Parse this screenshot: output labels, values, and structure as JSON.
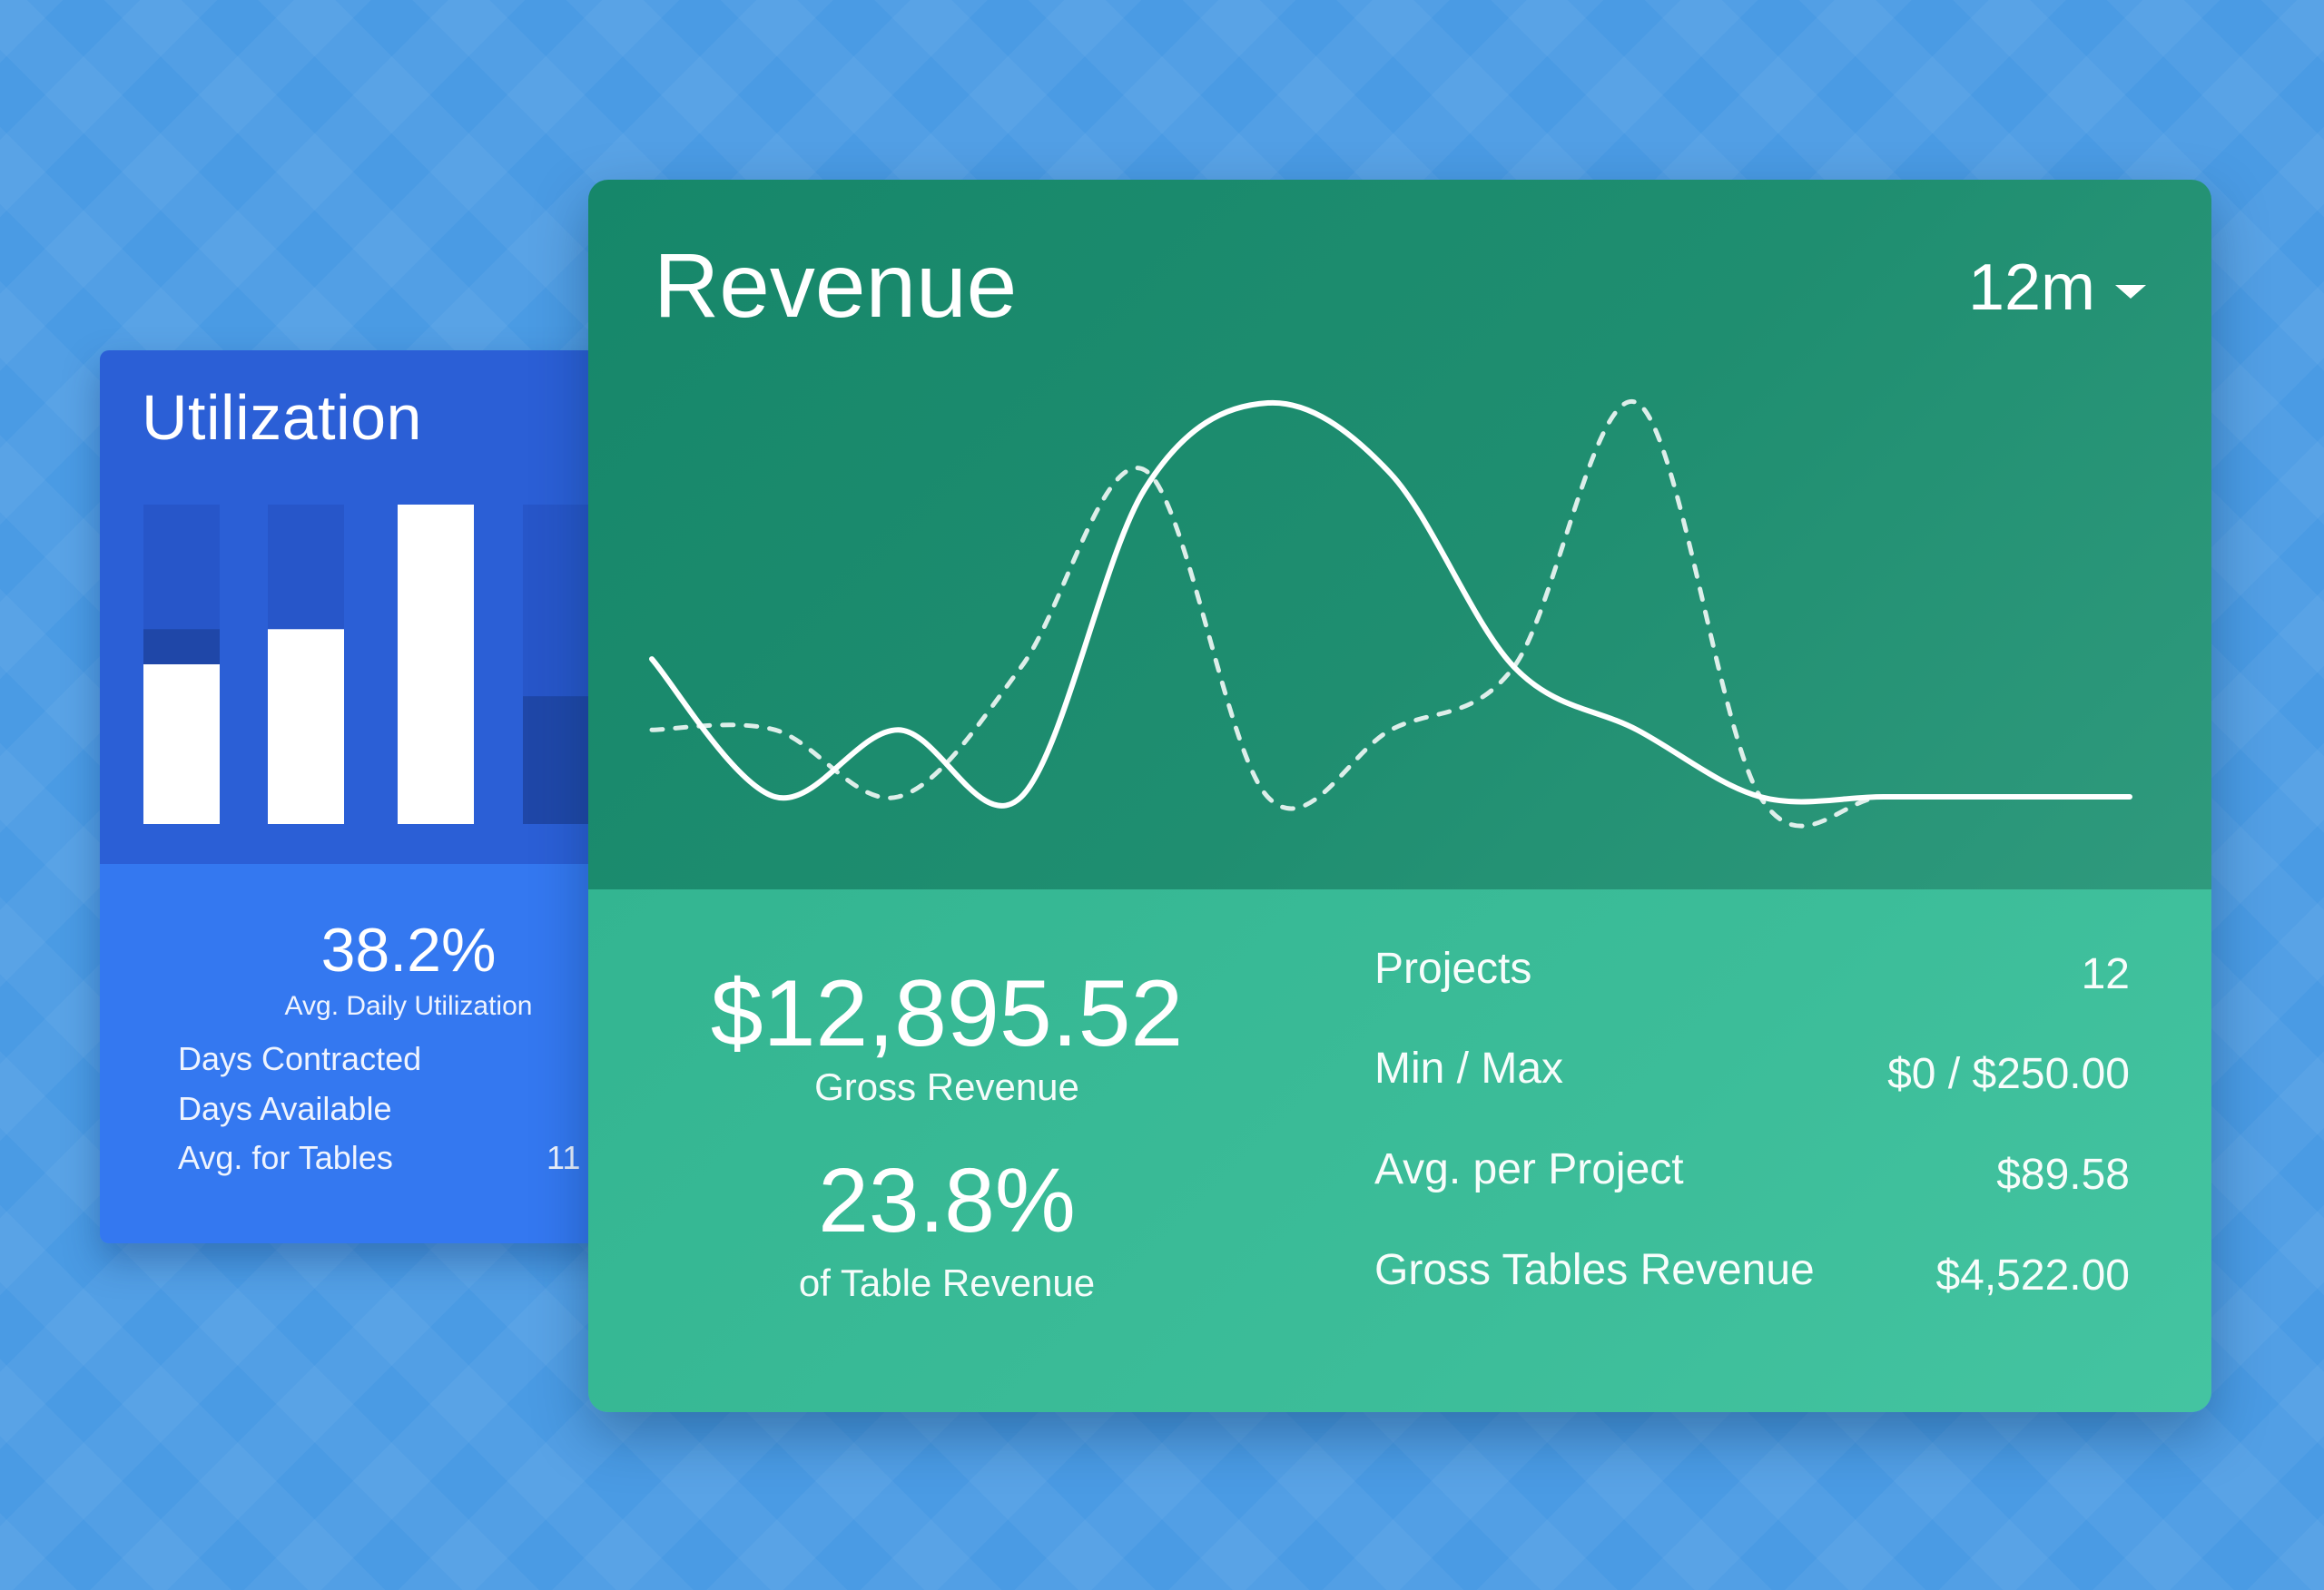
{
  "utilization": {
    "title": "Utilization",
    "avg_daily_utilization": "38.2%",
    "avg_daily_label": "Avg. Daily Utilization",
    "rows": [
      {
        "label": "Days Contracted",
        "value": ""
      },
      {
        "label": "Days Available",
        "value": ""
      },
      {
        "label": "Avg. for Tables",
        "value": "11"
      }
    ],
    "bars": [
      {
        "fill": 0.5,
        "dark_band": 0.11
      },
      {
        "fill": 0.61,
        "dark_band": 0
      },
      {
        "fill": 1.0,
        "dark_band": 0
      },
      {
        "fill": 0,
        "dark_band": 0.4
      }
    ]
  },
  "revenue": {
    "title": "Revenue",
    "range_selector": "12m",
    "gross_revenue": "$12,895.52",
    "gross_revenue_label": "Gross Revenue",
    "table_revenue_pct": "23.8%",
    "table_revenue_label": "of Table Revenue",
    "stats": [
      {
        "label": "Projects",
        "value": "12"
      },
      {
        "label": "Min / Max",
        "value": "$0 / $250.00"
      },
      {
        "label": "Avg. per Project",
        "value": "$89.58"
      },
      {
        "label": "Gross Tables Revenue",
        "value": "$4,522.00"
      }
    ]
  },
  "chart_data": {
    "type": "line",
    "title": "",
    "xlabel": "",
    "ylabel": "",
    "x": [
      1,
      2,
      3,
      4,
      5,
      6,
      7,
      8,
      9,
      10,
      11,
      12,
      13
    ],
    "ylim": [
      0,
      1
    ],
    "grid": false,
    "series": [
      {
        "style": "solid",
        "values": [
          0.35,
          0.0,
          0.17,
          0.0,
          0.78,
          1.0,
          0.82,
          0.33,
          0.17,
          0.0,
          0.0,
          0.0,
          0.0
        ]
      },
      {
        "style": "dashed",
        "values": [
          0.17,
          0.17,
          0.0,
          0.33,
          0.83,
          0.0,
          0.17,
          0.33,
          1.0,
          0.0,
          0.0,
          0.0,
          0.0
        ]
      }
    ]
  },
  "colors": {
    "background": "#4a9be4",
    "utilization_top": "#2b5fd6",
    "utilization_bottom": "#3478f0",
    "revenue_top": "#1a8a6c",
    "revenue_bottom": "#3cbd99",
    "line": "#ffffff"
  },
  "icons": {
    "range_dropdown": "caret-down-icon"
  }
}
